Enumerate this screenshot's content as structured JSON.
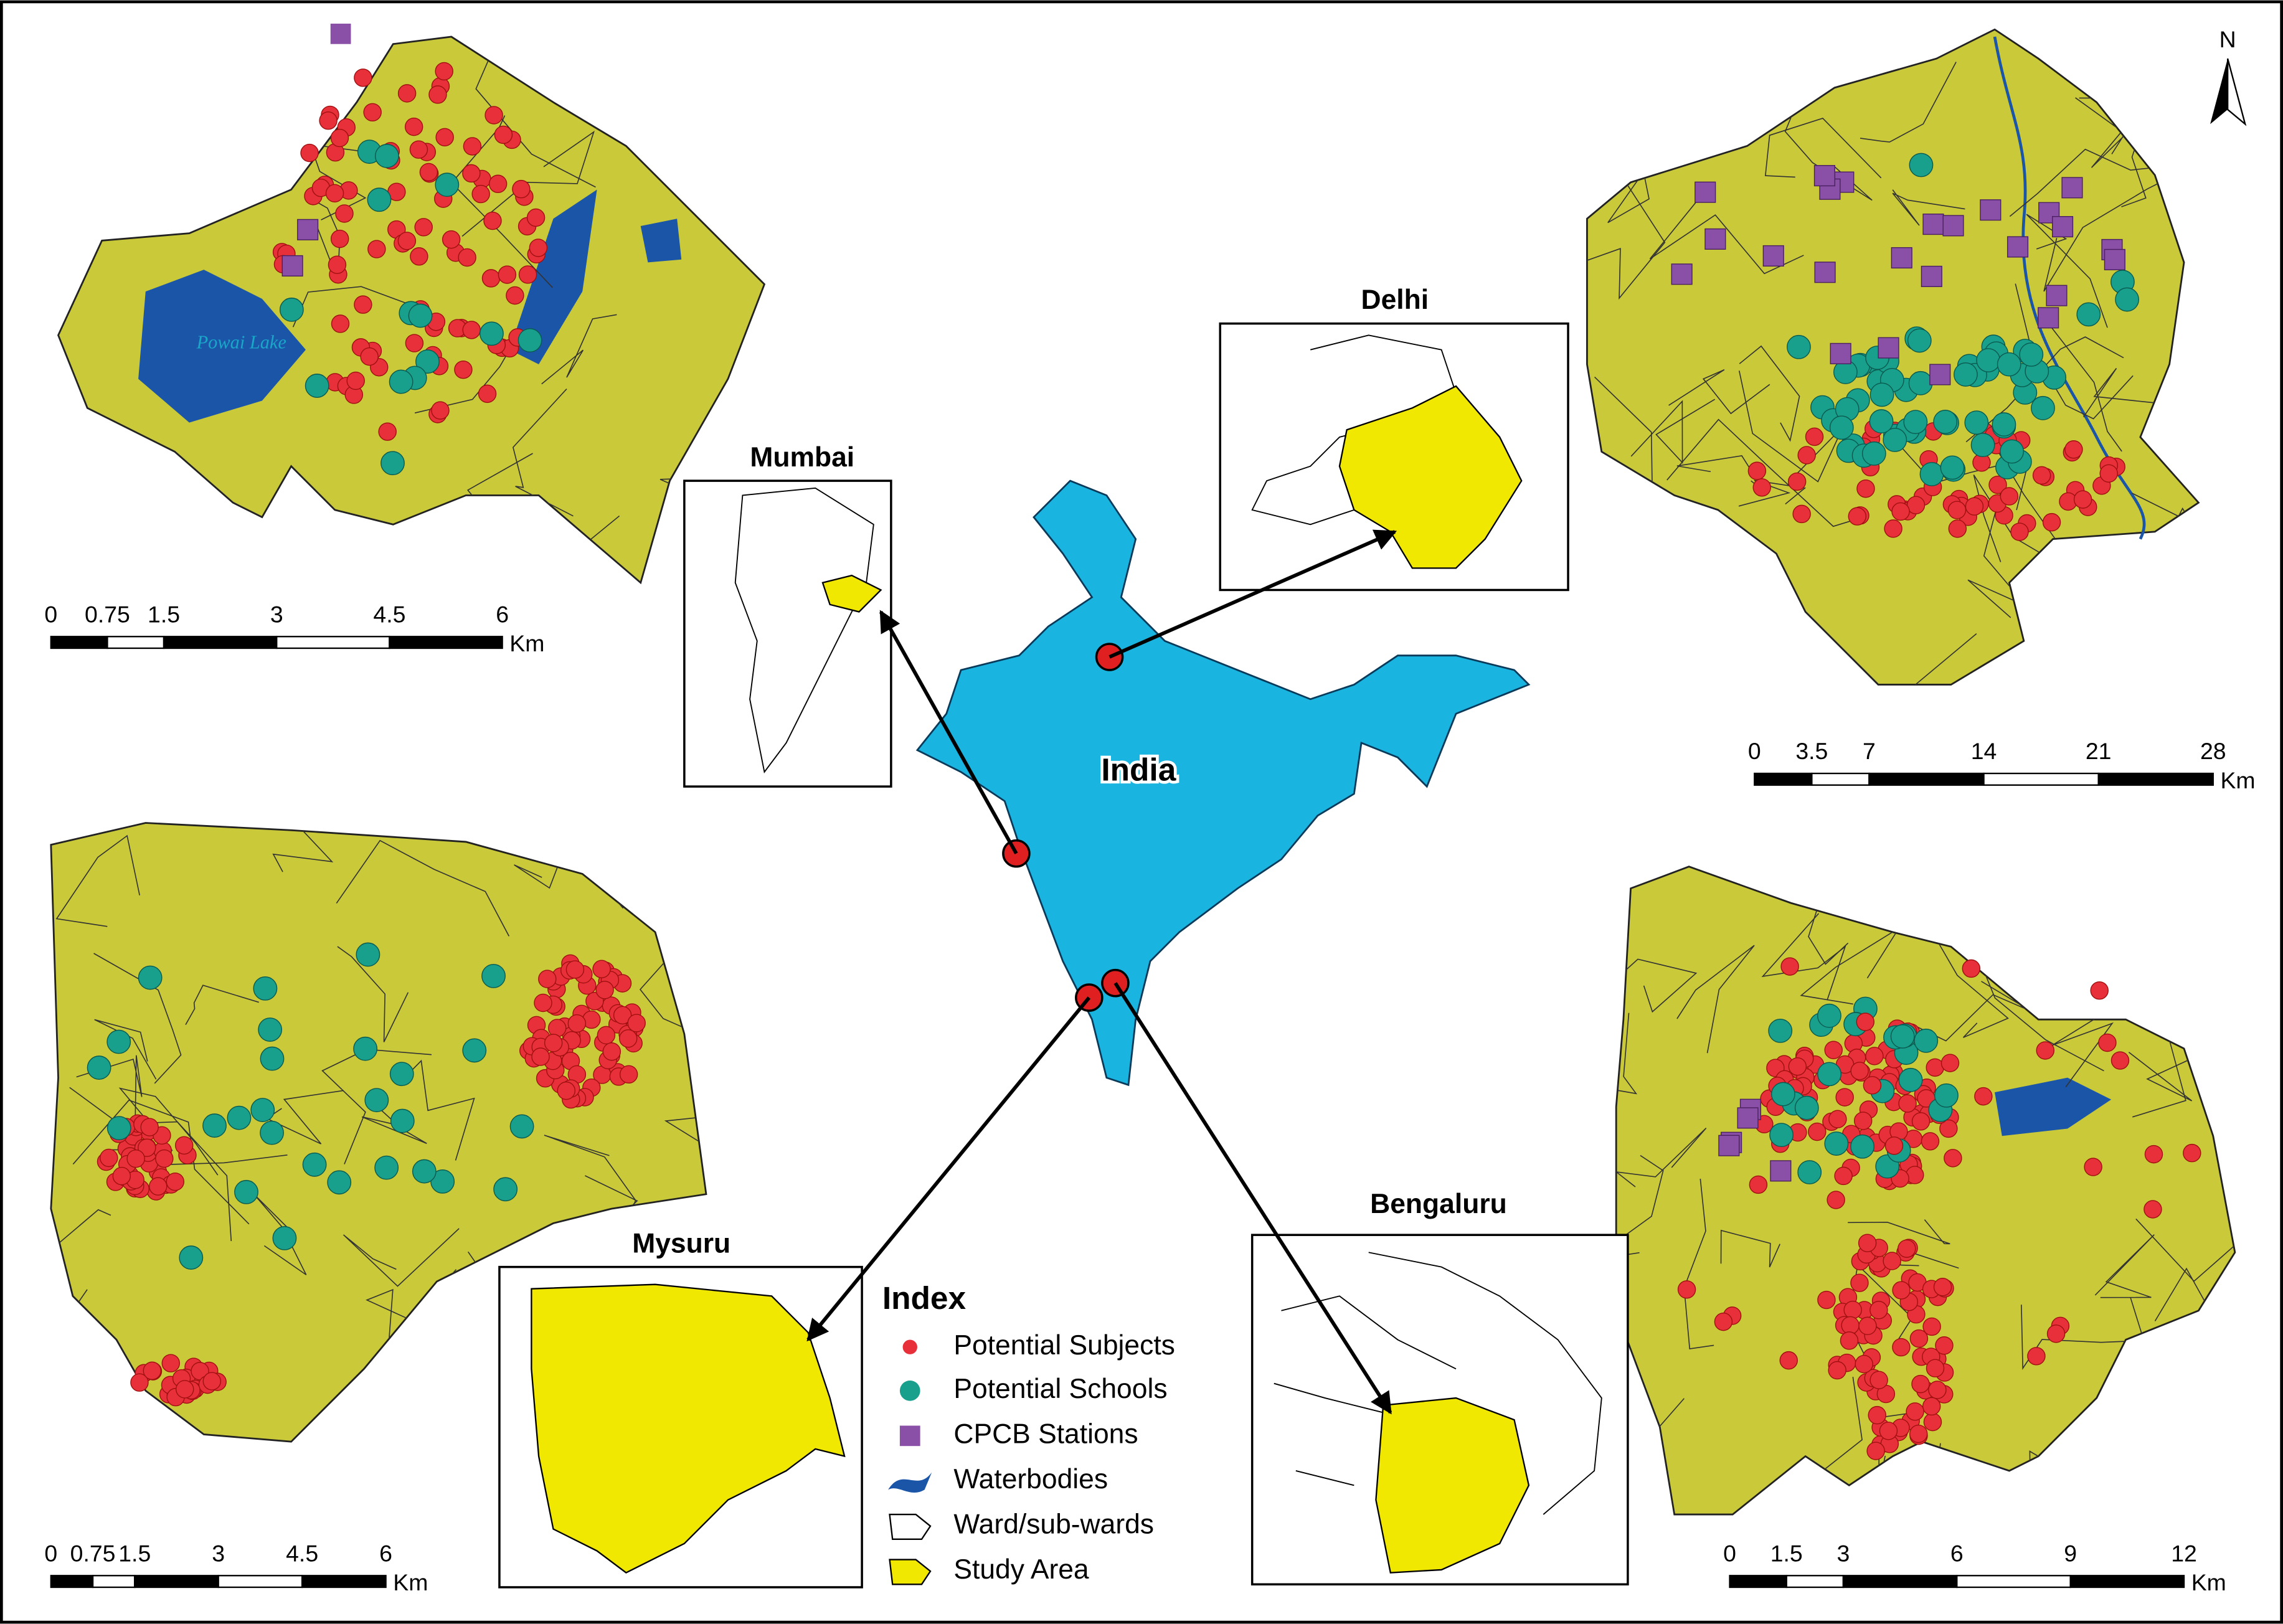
{
  "north_arrow": "N",
  "india": {
    "label": "India"
  },
  "insets": [
    {
      "title": "Mumbai"
    },
    {
      "title": "Delhi"
    },
    {
      "title": "Mysuru"
    },
    {
      "title": "Bengaluru"
    }
  ],
  "maps": [
    {
      "annotation": "Powai Lake",
      "scale": {
        "ticks": [
          "0",
          "0.75",
          "1.5",
          "3",
          "4.5",
          "6"
        ],
        "unit": "Km"
      }
    },
    {
      "scale": {
        "ticks": [
          "0",
          "3.5",
          "7",
          "14",
          "21",
          "28"
        ],
        "unit": "Km"
      }
    },
    {
      "scale": {
        "ticks": [
          "0",
          "0.75",
          "1.5",
          "3",
          "4.5",
          "6"
        ],
        "unit": "Km"
      }
    },
    {
      "scale": {
        "ticks": [
          "0",
          "1.5",
          "3",
          "6",
          "9",
          "12"
        ],
        "unit": "Km"
      }
    }
  ],
  "legend": {
    "title": "Index",
    "items": [
      "Potential Subjects",
      "Potential Schools",
      "CPCB Stations",
      "Waterbodies",
      "Ward/sub-wards",
      "Study Area"
    ]
  }
}
